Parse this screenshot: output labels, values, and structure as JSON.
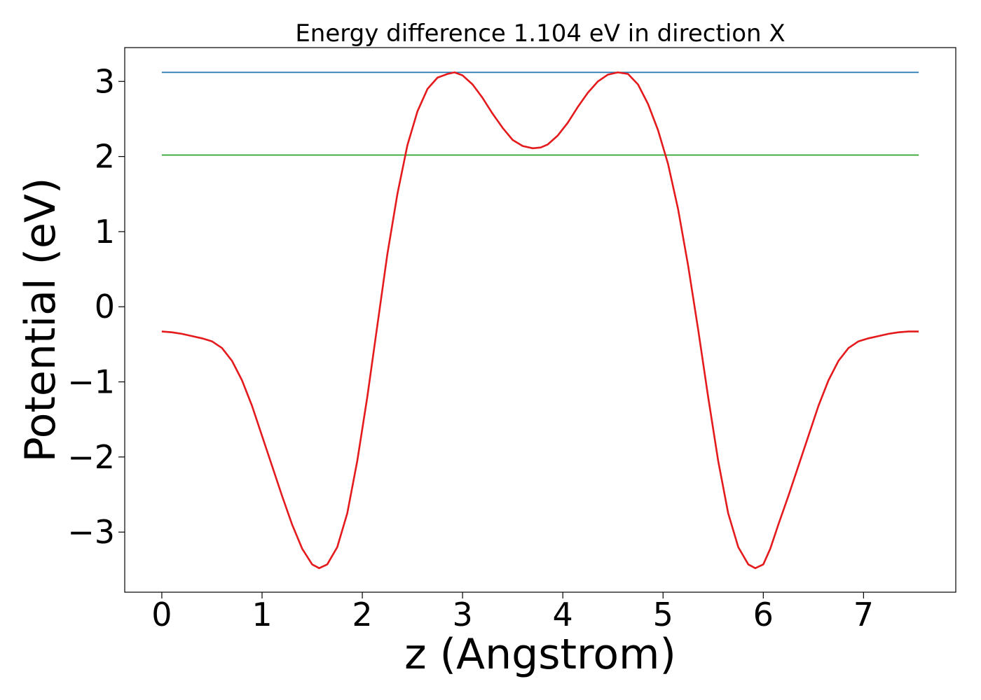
{
  "chart_data": {
    "type": "line",
    "title": "Energy difference 1.104 eV in direction X",
    "xlabel": "z (Angstrom)",
    "ylabel": "Potential (eV)",
    "xlim": [
      -0.37,
      7.92
    ],
    "ylim": [
      -3.8,
      3.45
    ],
    "xticks": [
      0,
      1,
      2,
      3,
      4,
      5,
      6,
      7
    ],
    "yticks": [
      -3,
      -2,
      -1,
      0,
      1,
      2,
      3
    ],
    "xtick_labels": [
      "0",
      "1",
      "2",
      "3",
      "4",
      "5",
      "6",
      "7"
    ],
    "ytick_labels": [
      "−3",
      "−2",
      "−1",
      "0",
      "1",
      "2",
      "3"
    ],
    "grid": false,
    "series": [
      {
        "color": "#1f77b4",
        "x": [
          0,
          7.55
        ],
        "y": [
          3.12,
          3.12
        ]
      },
      {
        "color": "#2ca02c",
        "x": [
          0,
          7.55
        ],
        "y": [
          2.02,
          2.02
        ]
      },
      {
        "color": "#e41a1c",
        "x": [
          0.0,
          0.1,
          0.2,
          0.3,
          0.4,
          0.5,
          0.6,
          0.7,
          0.8,
          0.9,
          1.0,
          1.1,
          1.2,
          1.3,
          1.4,
          1.5,
          1.57,
          1.65,
          1.75,
          1.85,
          1.95,
          2.05,
          2.15,
          2.25,
          2.35,
          2.45,
          2.55,
          2.65,
          2.75,
          2.85,
          2.92,
          3.0,
          3.1,
          3.2,
          3.3,
          3.4,
          3.5,
          3.6,
          3.7,
          3.78,
          3.85,
          3.95,
          4.05,
          4.15,
          4.25,
          4.35,
          4.45,
          4.55,
          4.65,
          4.75,
          4.85,
          4.95,
          5.05,
          5.15,
          5.25,
          5.35,
          5.45,
          5.55,
          5.65,
          5.75,
          5.85,
          5.92,
          6.0,
          6.07,
          6.15,
          6.25,
          6.35,
          6.45,
          6.55,
          6.65,
          6.75,
          6.85,
          6.95,
          7.05,
          7.15,
          7.25,
          7.35,
          7.45,
          7.55
        ],
        "y": [
          -0.33,
          -0.34,
          -0.36,
          -0.39,
          -0.42,
          -0.46,
          -0.55,
          -0.72,
          -0.98,
          -1.32,
          -1.72,
          -2.12,
          -2.52,
          -2.9,
          -3.22,
          -3.43,
          -3.48,
          -3.43,
          -3.2,
          -2.75,
          -2.05,
          -1.2,
          -0.25,
          0.7,
          1.5,
          2.15,
          2.6,
          2.9,
          3.05,
          3.1,
          3.12,
          3.08,
          2.96,
          2.78,
          2.57,
          2.38,
          2.22,
          2.14,
          2.11,
          2.12,
          2.16,
          2.28,
          2.45,
          2.66,
          2.85,
          3.0,
          3.09,
          3.12,
          3.1,
          2.96,
          2.7,
          2.35,
          1.9,
          1.3,
          0.55,
          -0.3,
          -1.2,
          -2.05,
          -2.75,
          -3.2,
          -3.43,
          -3.48,
          -3.43,
          -3.22,
          -2.9,
          -2.52,
          -2.12,
          -1.72,
          -1.32,
          -0.98,
          -0.72,
          -0.55,
          -0.46,
          -0.42,
          -0.39,
          -0.36,
          -0.34,
          -0.33,
          -0.33
        ]
      }
    ]
  }
}
